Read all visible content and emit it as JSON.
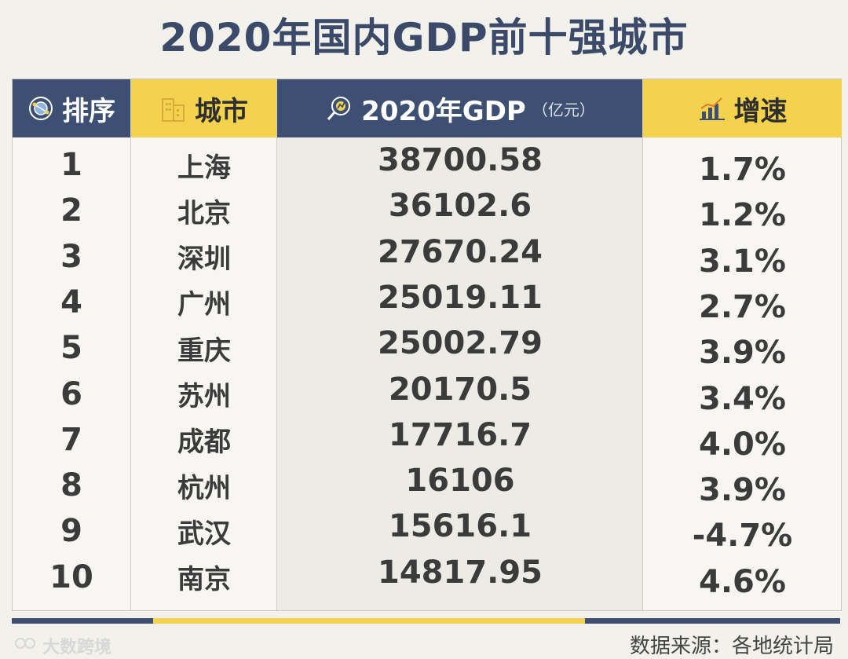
{
  "title": "2020年国内GDP前十强城市",
  "headers": {
    "rank": "排序",
    "city": "城市",
    "gdp": "2020年GDP",
    "gdp_unit": "（亿元）",
    "growth": "增速"
  },
  "rows": [
    {
      "rank": "1",
      "city": "上海",
      "gdp": "38700.58",
      "growth": "1.7%"
    },
    {
      "rank": "2",
      "city": "北京",
      "gdp": "36102.6",
      "growth": "1.2%"
    },
    {
      "rank": "3",
      "city": "深圳",
      "gdp": "27670.24",
      "growth": "3.1%"
    },
    {
      "rank": "4",
      "city": "广州",
      "gdp": "25019.11",
      "growth": "2.7%"
    },
    {
      "rank": "5",
      "city": "重庆",
      "gdp": "25002.79",
      "growth": "3.9%"
    },
    {
      "rank": "6",
      "city": "苏州",
      "gdp": "20170.5",
      "growth": "3.4%"
    },
    {
      "rank": "7",
      "city": "成都",
      "gdp": "17716.7",
      "growth": "4.0%"
    },
    {
      "rank": "8",
      "city": "杭州",
      "gdp": "16106",
      "growth": "3.9%"
    },
    {
      "rank": "9",
      "city": "武汉",
      "gdp": "15616.1",
      "growth": "-4.7%"
    },
    {
      "rank": "10",
      "city": "南京",
      "gdp": "14817.95",
      "growth": "4.6%"
    }
  ],
  "source": "数据来源：各地统计局",
  "watermark": "大数跨境",
  "icons": {
    "rank": "globe-network-icon",
    "city": "buildings-icon",
    "gdp": "magnifier-chart-icon",
    "growth": "bar-chart-icon"
  },
  "colors": {
    "navy": "#3d4f72",
    "yellow": "#f3d24e",
    "title": "#3a4a68"
  }
}
